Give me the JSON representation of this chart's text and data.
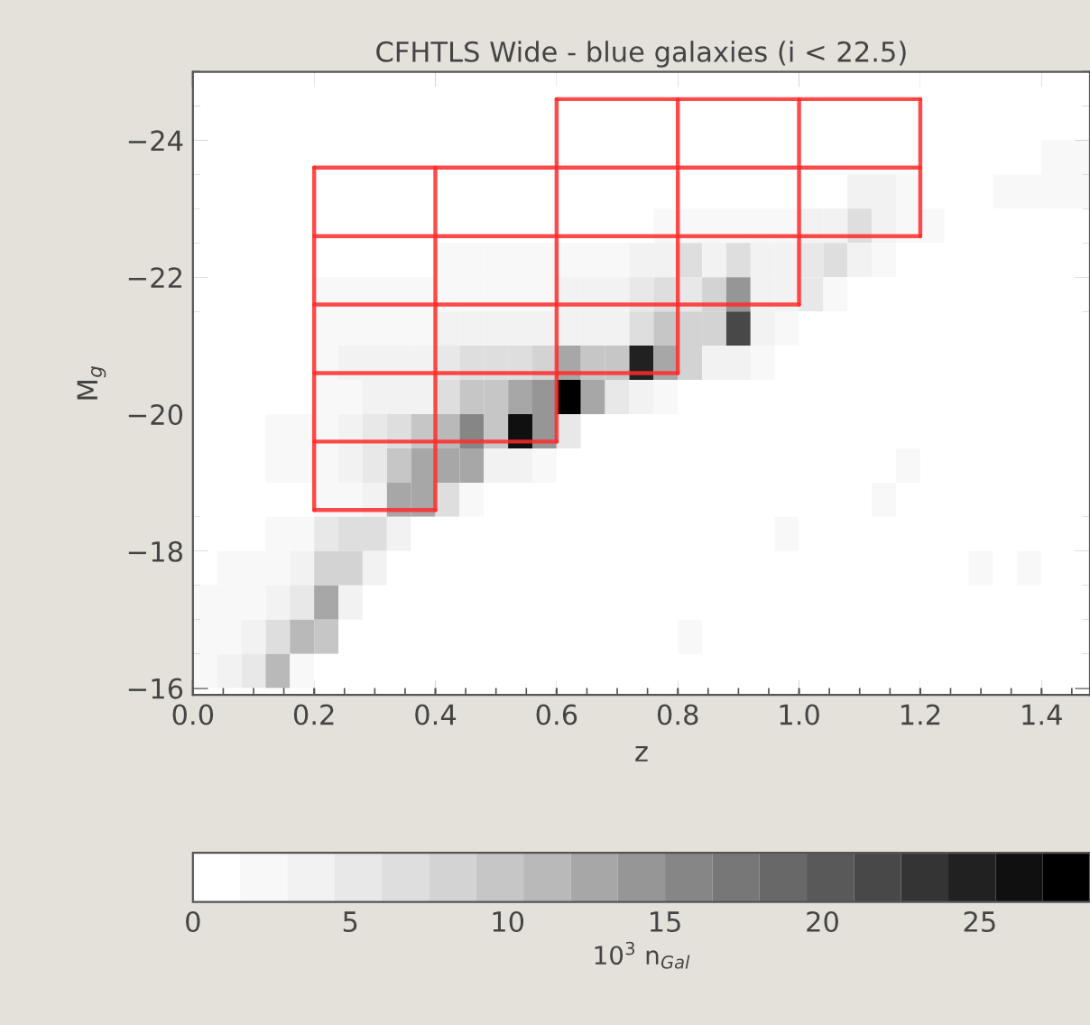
{
  "chart_data": {
    "type": "heatmap",
    "title": "CFHTLS Wide - blue galaxies (i < 22.5)",
    "xlabel": "z",
    "ylabel": "M$_{g}$",
    "clabel": "10$^{3}$ n$_{Gal}$",
    "x": [
      0.02,
      0.06,
      0.1,
      0.14,
      0.18,
      0.22,
      0.26,
      0.3,
      0.34,
      0.38,
      0.42,
      0.46,
      0.5,
      0.54,
      0.58,
      0.62,
      0.66,
      0.7,
      0.74,
      0.78,
      0.82,
      0.86,
      0.9,
      0.94,
      0.98,
      1.02,
      1.06,
      1.1,
      1.14,
      1.18,
      1.22,
      1.26,
      1.3,
      1.34,
      1.38,
      1.42,
      1.46
    ],
    "y": [
      -24.75,
      -24.25,
      -23.75,
      -23.25,
      -22.75,
      -22.25,
      -21.75,
      -21.25,
      -20.75,
      -20.25,
      -19.75,
      -19.25,
      -18.75,
      -18.25,
      -17.75,
      -17.25,
      -16.75,
      -16.25
    ],
    "cells": [
      [
        1,
        1,
        1,
        1,
        1,
        1,
        0,
        1,
        1,
        1,
        0,
        0,
        1,
        1,
        1,
        1,
        1,
        1,
        1,
        1,
        1,
        1,
        1,
        1,
        1,
        1,
        1,
        1,
        1,
        1,
        1,
        1,
        1,
        1,
        1,
        0,
        0
      ],
      [
        1,
        1,
        1,
        1,
        1,
        1,
        0,
        1,
        1,
        1,
        1,
        1,
        1,
        1,
        1,
        0,
        1,
        1,
        1,
        1,
        1,
        1,
        1,
        1,
        1,
        1,
        1,
        1,
        1,
        1,
        1,
        1,
        1,
        1,
        1,
        1,
        1
      ],
      [
        1,
        1,
        1,
        1,
        1,
        1,
        1,
        1,
        1,
        1,
        1,
        1,
        1,
        1,
        1,
        1,
        1,
        1,
        1,
        1,
        1,
        1,
        1,
        1,
        1,
        1,
        1,
        1,
        1,
        1,
        1,
        1,
        1,
        1,
        1,
        2,
        2
      ],
      [
        1,
        1,
        1,
        1,
        1,
        1,
        1,
        1,
        1,
        1,
        1,
        1,
        1,
        1,
        1,
        1,
        1,
        1,
        1,
        1,
        1,
        1,
        1,
        1,
        1,
        1,
        1,
        3,
        3,
        2,
        1,
        1,
        1,
        2,
        2,
        2,
        2
      ],
      [
        1,
        1,
        1,
        1,
        1,
        1,
        1,
        1,
        1,
        1,
        1,
        1,
        1,
        1,
        1,
        1,
        1,
        1,
        1,
        2,
        2,
        2,
        2,
        2,
        2.5,
        3,
        4,
        6,
        4,
        2,
        2,
        1,
        1,
        1,
        1,
        1,
        1
      ],
      [
        1,
        1,
        1,
        1,
        1,
        1,
        1,
        1,
        1,
        1,
        1.5,
        1.5,
        1.5,
        1.5,
        1.5,
        2,
        2,
        2,
        4,
        4,
        6,
        4,
        7,
        3,
        3,
        5,
        6,
        3,
        2,
        1,
        1,
        1,
        1,
        1,
        1,
        1,
        1
      ],
      [
        1,
        1,
        1,
        1,
        1,
        1.5,
        1.5,
        1.5,
        1.5,
        1.5,
        2,
        2,
        2,
        2,
        2,
        3,
        3,
        3,
        5,
        6,
        5,
        8,
        14,
        3,
        3,
        5,
        2,
        1,
        1,
        1,
        1,
        1,
        1,
        1,
        1,
        1,
        1
      ],
      [
        1,
        1,
        1,
        1,
        1,
        2,
        2,
        2,
        2,
        2,
        3,
        3,
        3,
        3,
        3,
        4,
        4,
        4,
        7,
        9,
        8,
        8,
        22,
        4,
        2,
        1,
        1,
        1,
        1,
        1,
        1,
        1,
        1,
        1,
        1,
        1,
        1
      ],
      [
        1,
        1,
        1,
        1,
        1,
        2,
        3,
        3,
        4,
        4,
        5,
        6,
        6,
        7,
        8,
        12,
        10,
        10,
        24,
        12,
        8,
        3,
        3,
        1.5,
        1,
        1,
        1,
        1,
        1,
        1,
        1,
        1,
        1,
        1,
        1,
        1,
        1
      ],
      [
        1,
        1,
        1,
        1,
        1,
        2,
        2,
        3,
        3,
        4,
        7,
        9,
        10,
        12,
        14,
        28,
        12,
        5,
        3,
        2,
        1,
        1,
        1,
        1,
        1,
        1,
        1,
        1,
        1,
        1,
        1,
        1,
        1,
        1,
        1,
        1,
        1
      ],
      [
        1,
        1,
        1,
        1.5,
        1.5,
        2,
        4,
        5,
        7,
        9,
        11,
        15,
        9,
        26,
        14,
        5,
        1,
        1,
        1,
        1,
        1,
        1,
        1,
        1,
        1,
        1,
        1,
        0,
        0,
        0,
        0,
        0,
        1,
        1,
        1,
        1,
        1
      ],
      [
        1,
        1,
        1,
        1.5,
        1.5,
        2,
        3,
        5,
        9,
        12,
        13,
        13,
        4,
        3,
        1.5,
        1,
        1,
        1,
        1,
        1,
        1,
        1,
        1,
        1,
        1,
        1,
        1,
        1,
        1,
        1.5,
        1,
        1,
        1,
        1,
        1,
        1,
        1
      ],
      [
        1,
        1,
        1,
        1,
        1,
        2,
        2.5,
        4,
        12,
        13,
        7,
        2,
        1,
        1,
        1,
        1,
        1,
        1,
        0,
        0,
        1,
        1,
        1,
        1,
        1,
        0,
        0,
        0,
        1.5,
        1,
        1,
        1,
        1,
        1,
        1,
        1,
        1
      ],
      [
        1,
        1,
        1,
        1.5,
        2,
        5,
        6,
        6,
        3,
        1,
        1,
        1,
        1,
        1,
        1,
        0,
        0,
        0,
        0,
        0,
        0,
        0,
        0,
        0,
        1.5,
        0,
        0,
        0,
        0,
        0,
        0,
        0,
        0,
        0,
        0,
        0,
        0
      ],
      [
        1,
        1.5,
        1.5,
        2,
        3,
        8,
        8,
        3,
        1,
        0,
        0,
        0,
        0,
        0,
        0,
        0,
        0,
        0,
        0,
        0,
        0,
        0,
        0,
        0,
        0,
        0,
        0,
        0,
        0,
        0,
        0,
        0,
        1.5,
        0,
        1.5,
        0,
        0
      ],
      [
        1.5,
        1.5,
        2,
        3,
        5,
        12,
        3,
        0,
        0,
        0,
        0,
        0,
        0,
        0,
        0,
        0,
        0,
        0,
        0,
        0,
        1,
        0,
        0,
        0,
        0,
        0,
        0,
        0,
        0,
        0,
        0,
        0,
        0,
        0,
        0,
        0,
        0
      ],
      [
        1.5,
        2,
        4,
        6,
        11,
        9,
        1,
        0,
        0,
        0,
        0,
        0,
        0,
        0,
        0,
        0,
        0,
        0,
        0,
        0,
        1.5,
        0,
        0,
        0,
        0,
        0,
        0,
        0,
        0,
        0,
        0,
        0,
        0,
        0,
        0,
        0,
        0
      ],
      [
        1.5,
        3,
        5,
        11,
        2,
        0,
        0,
        0,
        0,
        0,
        0,
        0,
        0,
        0,
        0,
        0,
        0,
        0,
        0,
        0,
        0,
        0,
        0,
        0,
        0,
        0,
        0,
        0,
        0,
        0,
        0,
        0,
        0,
        0,
        0,
        0,
        0
      ]
    ],
    "clim": [
      0,
      28.5
    ],
    "cticks": [
      0,
      5,
      10,
      15,
      20,
      25
    ],
    "xlim": [
      0,
      1.48
    ],
    "xticks": [
      {
        "value": 0,
        "label": "0.0"
      },
      {
        "value": 0.2,
        "label": "0.2"
      },
      {
        "value": 0.4,
        "label": "0.4"
      },
      {
        "value": 0.6,
        "label": "0.6"
      },
      {
        "value": 0.8,
        "label": "0.8"
      },
      {
        "value": 1.0,
        "label": "1.0"
      },
      {
        "value": 1.2,
        "label": "1.2"
      },
      {
        "value": 1.4,
        "label": "1.4"
      }
    ],
    "ylim": [
      -15.9,
      -25
    ],
    "yticks": [
      {
        "value": -24,
        "label": "−24"
      },
      {
        "value": -22,
        "label": "−22"
      },
      {
        "value": -20,
        "label": "−20"
      },
      {
        "value": -18,
        "label": "−18"
      },
      {
        "value": -16,
        "label": "−16"
      }
    ],
    "grid": false,
    "series": [
      {
        "type": "line",
        "color": "#ff2a2a",
        "x": [
          0.2,
          0.4
        ],
        "values": [
          -18.6,
          -18.6
        ]
      },
      {
        "type": "line",
        "color": "#ff2a2a",
        "x": [
          0.2,
          0.6
        ],
        "values": [
          -19.6,
          -19.6
        ]
      },
      {
        "type": "line",
        "color": "#ff2a2a",
        "x": [
          0.2,
          0.8
        ],
        "values": [
          -20.6,
          -20.6
        ]
      },
      {
        "type": "line",
        "color": "#ff2a2a",
        "x": [
          0.2,
          1.0
        ],
        "values": [
          -21.6,
          -21.6
        ]
      },
      {
        "type": "line",
        "color": "#ff2a2a",
        "x": [
          0.2,
          1.2
        ],
        "values": [
          -22.6,
          -22.6
        ]
      },
      {
        "type": "line",
        "color": "#ff2a2a",
        "x": [
          0.2,
          1.2
        ],
        "values": [
          -23.6,
          -23.6
        ]
      },
      {
        "type": "line",
        "color": "#ff2a2a",
        "x": [
          0.6,
          1.2
        ],
        "values": [
          -24.6,
          -24.6
        ]
      },
      {
        "type": "line",
        "color": "#ff2a2a",
        "x": [
          0.2,
          0.2
        ],
        "values": [
          -18.6,
          -23.6
        ]
      },
      {
        "type": "line",
        "color": "#ff2a2a",
        "x": [
          0.4,
          0.4
        ],
        "values": [
          -18.6,
          -23.6
        ]
      },
      {
        "type": "line",
        "color": "#ff2a2a",
        "x": [
          0.6,
          0.6
        ],
        "values": [
          -19.6,
          -24.6
        ]
      },
      {
        "type": "line",
        "color": "#ff2a2a",
        "x": [
          0.8,
          0.8
        ],
        "values": [
          -20.6,
          -24.6
        ]
      },
      {
        "type": "line",
        "color": "#ff2a2a",
        "x": [
          1.0,
          1.0
        ],
        "values": [
          -21.6,
          -24.6
        ]
      },
      {
        "type": "line",
        "color": "#ff2a2a",
        "x": [
          1.2,
          1.2
        ],
        "values": [
          -22.6,
          -24.6
        ]
      }
    ]
  }
}
